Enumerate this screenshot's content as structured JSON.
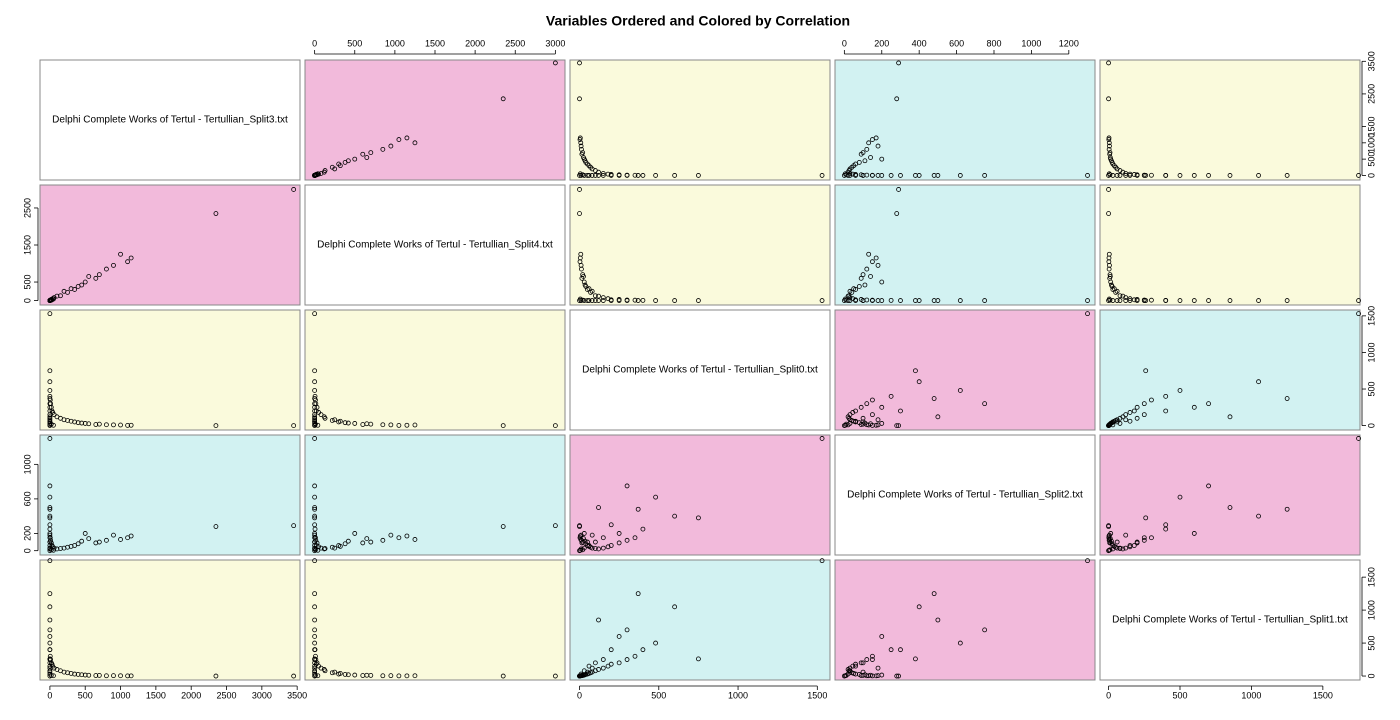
{
  "chart_data": {
    "type": "scatter-matrix",
    "title": "Variables Ordered and Colored by Correlation",
    "marker_color": "#000000",
    "panel_colors": [
      [
        "#ffffff",
        "#f2badb",
        "#fafadc",
        "#d2f2f2",
        "#fafadc"
      ],
      [
        "#f2badb",
        "#ffffff",
        "#fafadc",
        "#d2f2f2",
        "#fafadc"
      ],
      [
        "#fafadc",
        "#fafadc",
        "#ffffff",
        "#f2badb",
        "#d2f2f2"
      ],
      [
        "#d2f2f2",
        "#d2f2f2",
        "#f2badb",
        "#ffffff",
        "#f2badb"
      ],
      [
        "#fafadc",
        "#fafadc",
        "#d2f2f2",
        "#f2badb",
        "#ffffff"
      ]
    ],
    "variables": [
      {
        "name": "Delphi Complete Works of Tertul - Tertullian_Split3.txt",
        "lim": [
          -140,
          3540
        ],
        "xticks": [
          0,
          500,
          1000,
          1500,
          2000,
          2500,
          3000,
          3500
        ],
        "yticks": [
          0,
          500,
          1000,
          1500,
          2500,
          3500
        ],
        "values": [
          3450,
          2350,
          1150,
          1100,
          1000,
          900,
          800,
          700,
          650,
          550,
          500,
          450,
          400,
          350,
          300,
          250,
          200,
          150,
          100,
          60,
          40,
          30,
          20,
          10,
          5,
          0,
          0,
          0,
          0,
          0,
          0,
          0,
          0,
          0,
          0,
          0,
          0,
          0,
          0,
          0,
          0,
          0,
          20,
          50,
          0
        ]
      },
      {
        "name": "Delphi Complete Works of Tertul - Tertullian_Split4.txt",
        "lim": [
          -120,
          3120
        ],
        "xticks": [
          0,
          500,
          1000,
          1500,
          2000,
          2500,
          3000
        ],
        "yticks": [
          0,
          500,
          1500,
          2500
        ],
        "values": [
          3000,
          2350,
          1150,
          1050,
          1250,
          950,
          850,
          700,
          600,
          650,
          500,
          420,
          380,
          300,
          320,
          220,
          250,
          130,
          120,
          80,
          50,
          20,
          30,
          15,
          10,
          5,
          0,
          0,
          0,
          0,
          0,
          0,
          0,
          0,
          0,
          0,
          0,
          0,
          0,
          0,
          0,
          0,
          10,
          40,
          0
        ]
      },
      {
        "name": "Delphi Complete Works of Tertul - Tertullian_Split0.txt",
        "lim": [
          -60,
          1580
        ],
        "xticks": [
          0,
          500,
          1000,
          1500
        ],
        "yticks": [
          0,
          500,
          1000,
          1500
        ],
        "values": [
          0,
          0,
          5,
          3,
          8,
          10,
          12,
          20,
          15,
          25,
          30,
          35,
          40,
          50,
          60,
          70,
          80,
          100,
          120,
          150,
          180,
          200,
          250,
          300,
          350,
          400,
          1530,
          750,
          370,
          480,
          300,
          600,
          120,
          200,
          250,
          150,
          100,
          60,
          30,
          10,
          80,
          50,
          20,
          5,
          0
        ]
      },
      {
        "name": "Delphi Complete Works of Tertul - Tertullian_Split2.txt",
        "lim": [
          -50,
          1340
        ],
        "xticks": [
          0,
          200,
          400,
          600,
          800,
          1000,
          1200
        ],
        "yticks": [
          0,
          200,
          600,
          1000
        ],
        "values": [
          290,
          280,
          170,
          150,
          130,
          180,
          120,
          100,
          90,
          140,
          200,
          110,
          80,
          60,
          50,
          40,
          30,
          25,
          20,
          30,
          45,
          60,
          90,
          120,
          150,
          250,
          1300,
          380,
          480,
          620,
          750,
          400,
          500,
          300,
          200,
          150,
          100,
          60,
          30,
          20,
          180,
          100,
          10,
          5,
          0
        ]
      },
      {
        "name": "Delphi Complete Works of Tertul - Tertullian_Split1.txt",
        "lim": [
          -60,
          1760
        ],
        "xticks": [
          0,
          500,
          1000,
          1500
        ],
        "yticks": [
          0,
          500,
          1000,
          1500
        ],
        "values": [
          0,
          0,
          3,
          2,
          5,
          6,
          4,
          10,
          8,
          12,
          15,
          20,
          25,
          30,
          40,
          50,
          60,
          80,
          100,
          120,
          150,
          180,
          200,
          250,
          300,
          400,
          1750,
          260,
          1250,
          500,
          700,
          1050,
          850,
          400,
          600,
          250,
          200,
          150,
          80,
          30,
          120,
          60,
          10,
          5,
          0
        ]
      }
    ]
  }
}
